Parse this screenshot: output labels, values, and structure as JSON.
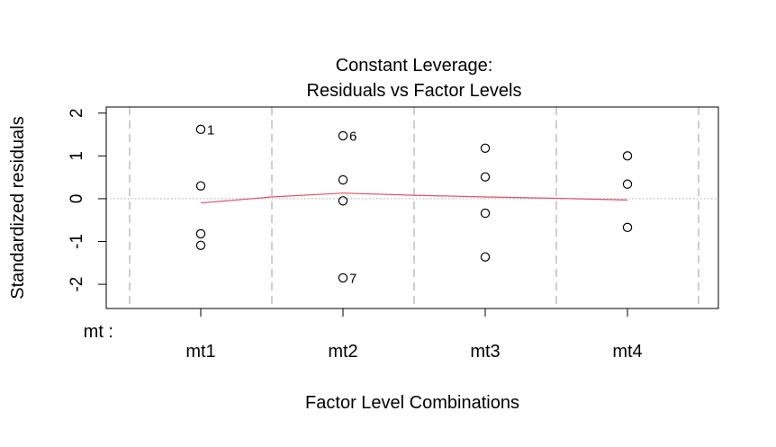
{
  "chart_data": {
    "type": "scatter",
    "title_line1": "Constant Leverage:",
    "title_line2": "Residuals vs Factor Levels",
    "xlabel": "Factor Level Combinations",
    "ylabel": "Standardized residuals",
    "factor_label": "mt :",
    "categories": [
      "mt1",
      "mt2",
      "mt3",
      "mt4"
    ],
    "ylim": [
      -2.25,
      2.1
    ],
    "yticks": [
      -2,
      -1,
      0,
      1,
      2
    ],
    "ytick_labels": [
      "-2",
      "-1",
      "0",
      "1",
      "2"
    ],
    "points": [
      {
        "category": "mt1",
        "y": 1.62,
        "label": "1"
      },
      {
        "category": "mt1",
        "y": 0.3,
        "label": ""
      },
      {
        "category": "mt1",
        "y": -0.82,
        "label": ""
      },
      {
        "category": "mt1",
        "y": -1.09,
        "label": ""
      },
      {
        "category": "mt2",
        "y": 1.47,
        "label": "6"
      },
      {
        "category": "mt2",
        "y": 0.44,
        "label": ""
      },
      {
        "category": "mt2",
        "y": -0.05,
        "label": ""
      },
      {
        "category": "mt2",
        "y": -1.85,
        "label": "7"
      },
      {
        "category": "mt3",
        "y": 1.18,
        "label": ""
      },
      {
        "category": "mt3",
        "y": 0.51,
        "label": ""
      },
      {
        "category": "mt3",
        "y": -0.34,
        "label": ""
      },
      {
        "category": "mt3",
        "y": -1.36,
        "label": ""
      },
      {
        "category": "mt4",
        "y": 1.0,
        "label": ""
      },
      {
        "category": "mt4",
        "y": 0.34,
        "label": ""
      },
      {
        "category": "mt4",
        "y": -0.67,
        "label": ""
      }
    ],
    "smooth_line": {
      "x": [
        1,
        1.5,
        2,
        2.5,
        3,
        3.5,
        4
      ],
      "y": [
        -0.1,
        0.04,
        0.13,
        0.08,
        0.04,
        0.01,
        -0.03
      ],
      "color": "#DF536B"
    },
    "reference_line": {
      "y": 0,
      "color": "#AAAAAA",
      "style": "dotted"
    },
    "vertical_separators": {
      "color": "#BEBEBE",
      "style": "dashed"
    },
    "grid": false,
    "legend": "none"
  }
}
